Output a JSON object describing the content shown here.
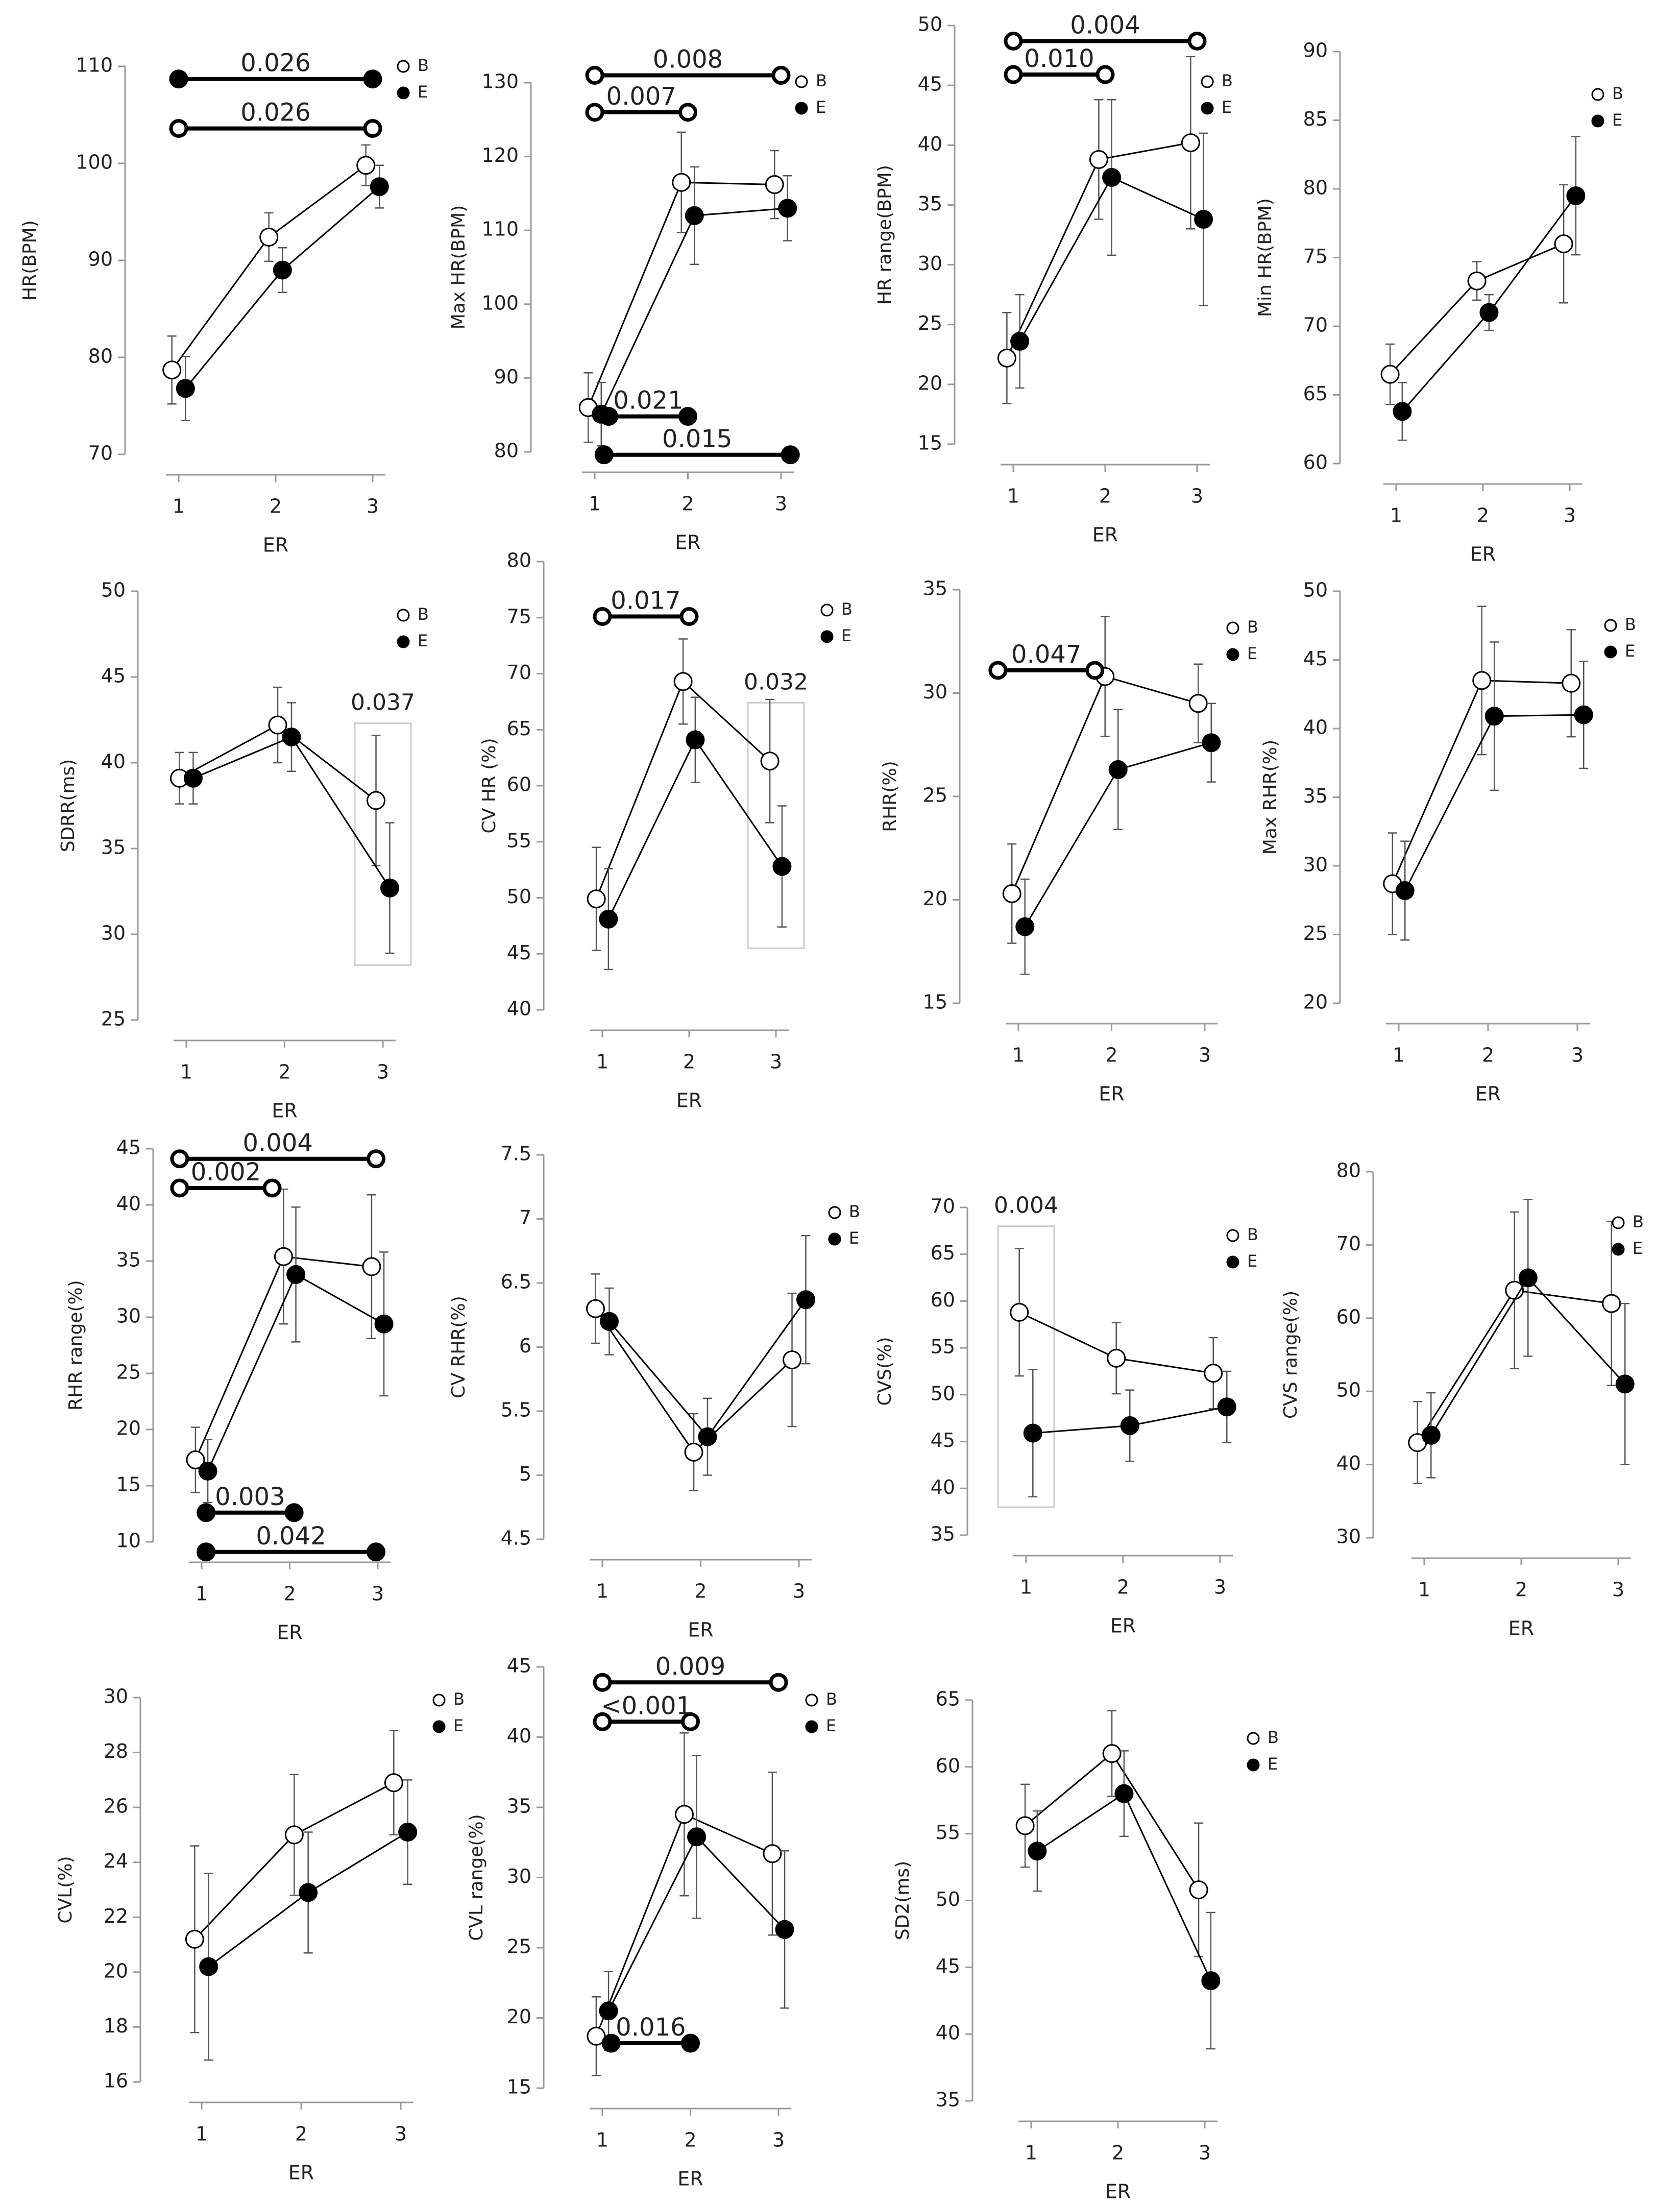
{
  "colors": {
    "B_fill": "#ffffff",
    "E_fill": "#000000",
    "stroke": "#000000",
    "axis": "#999999",
    "box": "#cccccc"
  },
  "legend": {
    "b_label": "B",
    "e_label": "E"
  },
  "chart_data": [
    {
      "id": "hr",
      "type": "line",
      "ylabel": "HR(BPM)",
      "xlabel": "ER",
      "categories": [
        "1",
        "2",
        "3"
      ],
      "ylim": [
        70,
        110
      ],
      "yticks": [
        70,
        80,
        90,
        100,
        110
      ],
      "series": [
        {
          "name": "B",
          "values": [
            78.7,
            92.4,
            99.8
          ],
          "err": [
            3.5,
            2.5,
            2.1
          ]
        },
        {
          "name": "E",
          "values": [
            76.8,
            89.0,
            97.6
          ],
          "err": [
            3.3,
            2.3,
            2.2
          ]
        }
      ],
      "brackets": [
        {
          "from": 1,
          "to": 3,
          "y": 108.7,
          "series": "E",
          "label": "0.026"
        },
        {
          "from": 1,
          "to": 3,
          "y": 103.6,
          "series": "B",
          "label": "0.026"
        }
      ]
    },
    {
      "id": "maxhr",
      "type": "line",
      "ylabel": "Max HR(BPM)",
      "xlabel": "ER",
      "categories": [
        "1",
        "2",
        "3"
      ],
      "ylim": [
        80,
        130
      ],
      "yticks": [
        80,
        90,
        100,
        110,
        120,
        130
      ],
      "series": [
        {
          "name": "B",
          "values": [
            86.0,
            116.5,
            116.2
          ],
          "err": [
            4.7,
            6.8,
            4.6
          ]
        },
        {
          "name": "E",
          "values": [
            85.1,
            112.0,
            113.0
          ],
          "err": [
            4.3,
            6.6,
            4.4
          ]
        }
      ],
      "brackets": [
        {
          "from": 1,
          "to": 3,
          "y": 131.0,
          "series": "B",
          "label": "0.008"
        },
        {
          "from": 1,
          "to": 2,
          "y": 126.0,
          "series": "B",
          "label": "0.007"
        },
        {
          "from": 1.15,
          "to": 2,
          "y": 84.8,
          "series": "E",
          "label": "0.021"
        },
        {
          "from": 1.1,
          "to": 3.1,
          "y": 79.6,
          "series": "E",
          "label": "0.015"
        }
      ]
    },
    {
      "id": "hrrange",
      "type": "line",
      "ylabel": "HR range(BPM)",
      "xlabel": "ER",
      "categories": [
        "1",
        "2",
        "3"
      ],
      "ylim": [
        15,
        50
      ],
      "yticks": [
        15,
        20,
        25,
        30,
        35,
        40,
        45,
        50
      ],
      "series": [
        {
          "name": "B",
          "values": [
            22.2,
            38.8,
            40.2
          ],
          "err": [
            3.8,
            5.0,
            7.2
          ]
        },
        {
          "name": "E",
          "values": [
            23.6,
            37.3,
            33.8
          ],
          "err": [
            3.9,
            6.5,
            7.2
          ]
        }
      ],
      "brackets": [
        {
          "from": 1,
          "to": 3,
          "y": 48.7,
          "series": "B",
          "label": "0.004"
        },
        {
          "from": 1,
          "to": 2,
          "y": 45.9,
          "series": "B",
          "label": "0.010"
        }
      ]
    },
    {
      "id": "minhr",
      "type": "line",
      "ylabel": "Min HR(BPM)",
      "xlabel": "ER",
      "categories": [
        "1",
        "2",
        "3"
      ],
      "ylim": [
        60,
        90
      ],
      "yticks": [
        60,
        65,
        70,
        75,
        80,
        85,
        90
      ],
      "series": [
        {
          "name": "B",
          "values": [
            66.5,
            73.3,
            76.0
          ],
          "err": [
            2.2,
            1.4,
            4.3
          ]
        },
        {
          "name": "E",
          "values": [
            63.8,
            71.0,
            79.5
          ],
          "err": [
            2.1,
            1.3,
            4.3
          ]
        }
      ],
      "brackets": []
    },
    {
      "id": "sdrr",
      "type": "line",
      "ylabel": "SDRR(ms)",
      "xlabel": "ER",
      "categories": [
        "1",
        "2",
        "3"
      ],
      "ylim": [
        25,
        50
      ],
      "yticks": [
        25,
        30,
        35,
        40,
        45,
        50
      ],
      "series": [
        {
          "name": "B",
          "values": [
            39.1,
            42.2,
            37.8
          ],
          "err": [
            1.5,
            2.2,
            3.8
          ]
        },
        {
          "name": "E",
          "values": [
            39.1,
            41.5,
            32.7
          ],
          "err": [
            1.5,
            2.0,
            3.8
          ]
        }
      ],
      "brackets": [],
      "boxes": [
        {
          "x": 3,
          "y1": 28.2,
          "y2": 42.3,
          "label": "0.037"
        }
      ]
    },
    {
      "id": "cvhr",
      "type": "line",
      "ylabel": "CV HR (%)",
      "xlabel": "ER",
      "categories": [
        "1",
        "2",
        "3"
      ],
      "ylim": [
        40,
        80
      ],
      "yticks": [
        40,
        45,
        50,
        55,
        60,
        65,
        70,
        75,
        80
      ],
      "series": [
        {
          "name": "B",
          "values": [
            49.9,
            69.3,
            62.2
          ],
          "err": [
            4.6,
            3.8,
            5.5
          ]
        },
        {
          "name": "E",
          "values": [
            48.1,
            64.1,
            52.8
          ],
          "err": [
            4.5,
            3.8,
            5.4
          ]
        }
      ],
      "brackets": [
        {
          "from": 1,
          "to": 2,
          "y": 75.1,
          "series": "B",
          "label": "0.017"
        }
      ],
      "boxes": [
        {
          "x": 3,
          "y1": 45.5,
          "y2": 67.4,
          "label": "0.032"
        }
      ]
    },
    {
      "id": "rhr",
      "type": "line",
      "ylabel": "RHR(%)",
      "xlabel": "ER",
      "categories": [
        "1",
        "2",
        "3"
      ],
      "ylim": [
        15,
        35
      ],
      "yticks": [
        15,
        20,
        25,
        30,
        35
      ],
      "series": [
        {
          "name": "B",
          "values": [
            20.3,
            30.8,
            29.5
          ],
          "err": [
            2.4,
            2.9,
            1.9
          ]
        },
        {
          "name": "E",
          "values": [
            18.7,
            26.3,
            27.6
          ],
          "err": [
            2.3,
            2.9,
            1.9
          ]
        }
      ],
      "brackets": [
        {
          "from": 0.78,
          "to": 1.82,
          "y": 31.1,
          "series": "B",
          "label": "0.047"
        }
      ]
    },
    {
      "id": "maxrhr",
      "type": "line",
      "ylabel": "Max RHR(%)",
      "xlabel": "ER",
      "categories": [
        "1",
        "2",
        "3"
      ],
      "ylim": [
        20,
        50
      ],
      "yticks": [
        20,
        25,
        30,
        35,
        40,
        45,
        50
      ],
      "series": [
        {
          "name": "B",
          "values": [
            28.7,
            43.5,
            43.3
          ],
          "err": [
            3.7,
            5.4,
            3.9
          ]
        },
        {
          "name": "E",
          "values": [
            28.2,
            40.9,
            41.0
          ],
          "err": [
            3.6,
            5.4,
            3.9
          ]
        }
      ],
      "brackets": []
    },
    {
      "id": "rhrrange",
      "type": "line",
      "ylabel": "RHR range(%)",
      "xlabel": "ER",
      "categories": [
        "1",
        "2",
        "3"
      ],
      "ylim": [
        10,
        45
      ],
      "yticks": [
        10,
        15,
        20,
        25,
        30,
        35,
        40,
        45
      ],
      "series": [
        {
          "name": "B",
          "values": [
            17.3,
            35.4,
            34.5
          ],
          "err": [
            2.9,
            6.0,
            6.4
          ]
        },
        {
          "name": "E",
          "values": [
            16.3,
            33.8,
            29.4
          ],
          "err": [
            2.8,
            6.0,
            6.4
          ]
        }
      ],
      "brackets": [
        {
          "from": 0.75,
          "to": 2.98,
          "y": 44.1,
          "series": "B",
          "label": "0.004"
        },
        {
          "from": 0.75,
          "to": 1.8,
          "y": 41.5,
          "series": "B",
          "label": "0.002"
        },
        {
          "from": 1.05,
          "to": 2.05,
          "y": 12.6,
          "series": "E",
          "label": "0.003"
        },
        {
          "from": 1.05,
          "to": 2.98,
          "y": 9.1,
          "series": "E",
          "label": "0.042"
        }
      ]
    },
    {
      "id": "cvrhr",
      "type": "line",
      "ylabel": "CV RHR(%)",
      "xlabel": "ER",
      "categories": [
        "1",
        "2",
        "3"
      ],
      "ylim": [
        4.5,
        7.5
      ],
      "yticks": [
        4.5,
        5.0,
        5.5,
        6.0,
        6.5,
        7.0,
        7.5
      ],
      "series": [
        {
          "name": "B",
          "values": [
            6.3,
            5.18,
            5.9
          ],
          "err": [
            0.27,
            0.3,
            0.52
          ]
        },
        {
          "name": "E",
          "values": [
            6.2,
            5.3,
            6.37
          ],
          "err": [
            0.26,
            0.3,
            0.5
          ]
        }
      ],
      "brackets": []
    },
    {
      "id": "cvs",
      "type": "line",
      "ylabel": "CVS(%)",
      "xlabel": "ER",
      "categories": [
        "1",
        "2",
        "3"
      ],
      "ylim": [
        35,
        70
      ],
      "yticks": [
        35,
        40,
        45,
        50,
        55,
        60,
        65,
        70
      ],
      "series": [
        {
          "name": "B",
          "values": [
            58.8,
            53.9,
            52.3
          ],
          "err": [
            6.8,
            3.8,
            3.8
          ]
        },
        {
          "name": "E",
          "values": [
            45.9,
            46.7,
            48.7
          ],
          "err": [
            6.8,
            3.8,
            3.8
          ]
        }
      ],
      "brackets": [],
      "boxes": [
        {
          "x": 1,
          "y1": 38.0,
          "y2": 68.0,
          "label": "0.004"
        }
      ]
    },
    {
      "id": "cvsrange",
      "type": "line",
      "ylabel": "CVS range(%)",
      "xlabel": "ER",
      "categories": [
        "1",
        "2",
        "3"
      ],
      "ylim": [
        30,
        80
      ],
      "yticks": [
        30,
        40,
        50,
        60,
        70,
        80
      ],
      "series": [
        {
          "name": "B",
          "values": [
            43.0,
            63.8,
            62.0
          ],
          "err": [
            5.6,
            10.7,
            11.2
          ]
        },
        {
          "name": "E",
          "values": [
            44.0,
            65.5,
            51.0
          ],
          "err": [
            5.8,
            10.7,
            11.0
          ]
        }
      ],
      "brackets": []
    },
    {
      "id": "cvl",
      "type": "line",
      "ylabel": "CVL(%)",
      "xlabel": "ER",
      "categories": [
        "1",
        "2",
        "3"
      ],
      "ylim": [
        16,
        30
      ],
      "yticks": [
        16,
        18,
        20,
        22,
        24,
        26,
        28,
        30
      ],
      "series": [
        {
          "name": "B",
          "values": [
            21.2,
            25.0,
            26.9
          ],
          "err": [
            3.4,
            2.2,
            1.9
          ]
        },
        {
          "name": "E",
          "values": [
            20.2,
            22.9,
            25.1
          ],
          "err": [
            3.4,
            2.2,
            1.9
          ]
        }
      ],
      "brackets": []
    },
    {
      "id": "cvlrange",
      "type": "line",
      "ylabel": "CVL range(%)",
      "xlabel": "ER",
      "categories": [
        "1",
        "2",
        "3"
      ],
      "ylim": [
        15,
        45
      ],
      "yticks": [
        15,
        20,
        25,
        30,
        35,
        40,
        45
      ],
      "series": [
        {
          "name": "B",
          "values": [
            18.7,
            34.5,
            31.7
          ],
          "err": [
            2.8,
            5.8,
            5.8
          ]
        },
        {
          "name": "E",
          "values": [
            20.5,
            32.9,
            26.3
          ],
          "err": [
            2.8,
            5.8,
            5.6
          ]
        }
      ],
      "brackets": [
        {
          "from": 1,
          "to": 3,
          "y": 43.9,
          "series": "B",
          "label": "0.009"
        },
        {
          "from": 1,
          "to": 2,
          "y": 41.1,
          "series": "B",
          "label": "<0.001"
        },
        {
          "from": 1.1,
          "to": 2,
          "y": 18.2,
          "series": "E",
          "label": "0.016"
        }
      ]
    },
    {
      "id": "sd2",
      "type": "line",
      "ylabel": "SD2(ms)",
      "xlabel": "ER",
      "categories": [
        "1",
        "2",
        "3"
      ],
      "ylim": [
        35,
        65
      ],
      "yticks": [
        35,
        40,
        45,
        50,
        55,
        60,
        65
      ],
      "ytick_labels": [
        "35",
        "40",
        "45",
        "50",
        "55",
        "60",
        "65"
      ],
      "series": [
        {
          "name": "B",
          "values": [
            55.6,
            61.0,
            50.8
          ],
          "err": [
            3.1,
            3.2,
            5.0
          ]
        },
        {
          "name": "E",
          "values": [
            53.7,
            58.0,
            44.0
          ],
          "err": [
            3.0,
            3.2,
            5.1
          ]
        }
      ],
      "brackets": []
    }
  ]
}
